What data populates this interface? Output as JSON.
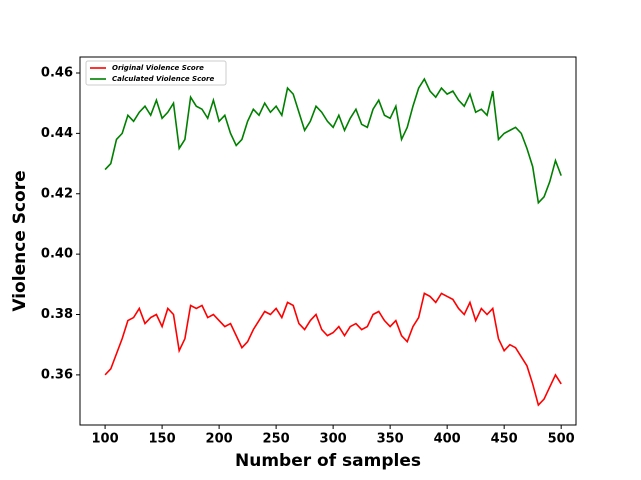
{
  "chart_data": {
    "type": "line",
    "xlabel": "Number of samples",
    "ylabel": "Violence Score",
    "x": [
      100,
      105,
      110,
      115,
      120,
      125,
      130,
      135,
      140,
      145,
      150,
      155,
      160,
      165,
      170,
      175,
      180,
      185,
      190,
      195,
      200,
      205,
      210,
      215,
      220,
      225,
      230,
      235,
      240,
      245,
      250,
      255,
      260,
      265,
      270,
      275,
      280,
      285,
      290,
      295,
      300,
      305,
      310,
      315,
      320,
      325,
      330,
      335,
      340,
      345,
      350,
      355,
      360,
      365,
      370,
      375,
      380,
      385,
      390,
      395,
      400,
      405,
      410,
      415,
      420,
      425,
      430,
      435,
      440,
      445,
      450,
      455,
      460,
      465,
      470,
      475,
      480,
      485,
      490,
      495,
      500
    ],
    "series": [
      {
        "name": "Original Violence Score",
        "color": "#ff0000",
        "values": [
          0.36,
          0.362,
          0.367,
          0.372,
          0.378,
          0.379,
          0.382,
          0.377,
          0.379,
          0.38,
          0.376,
          0.382,
          0.38,
          0.368,
          0.372,
          0.383,
          0.382,
          0.383,
          0.379,
          0.38,
          0.378,
          0.376,
          0.377,
          0.373,
          0.369,
          0.371,
          0.375,
          0.378,
          0.381,
          0.38,
          0.382,
          0.379,
          0.384,
          0.383,
          0.377,
          0.375,
          0.378,
          0.38,
          0.375,
          0.373,
          0.374,
          0.376,
          0.373,
          0.376,
          0.377,
          0.375,
          0.376,
          0.38,
          0.381,
          0.378,
          0.376,
          0.378,
          0.373,
          0.371,
          0.376,
          0.379,
          0.387,
          0.386,
          0.384,
          0.387,
          0.386,
          0.385,
          0.382,
          0.38,
          0.384,
          0.378,
          0.382,
          0.38,
          0.382,
          0.372,
          0.368,
          0.37,
          0.369,
          0.366,
          0.363,
          0.357,
          0.35,
          0.352,
          0.356,
          0.36,
          0.357
        ]
      },
      {
        "name": "Calculated Violence Score",
        "color": "#008000",
        "values": [
          0.428,
          0.43,
          0.438,
          0.44,
          0.446,
          0.444,
          0.447,
          0.449,
          0.446,
          0.451,
          0.445,
          0.447,
          0.45,
          0.435,
          0.438,
          0.452,
          0.449,
          0.448,
          0.445,
          0.451,
          0.444,
          0.446,
          0.44,
          0.436,
          0.438,
          0.444,
          0.448,
          0.446,
          0.45,
          0.447,
          0.449,
          0.446,
          0.455,
          0.453,
          0.447,
          0.441,
          0.444,
          0.449,
          0.447,
          0.444,
          0.442,
          0.446,
          0.441,
          0.445,
          0.448,
          0.443,
          0.442,
          0.448,
          0.451,
          0.446,
          0.445,
          0.449,
          0.438,
          0.442,
          0.449,
          0.455,
          0.458,
          0.454,
          0.452,
          0.455,
          0.453,
          0.454,
          0.451,
          0.449,
          0.453,
          0.447,
          0.448,
          0.446,
          0.454,
          0.438,
          0.44,
          0.441,
          0.442,
          0.44,
          0.435,
          0.429,
          0.417,
          0.419,
          0.424,
          0.431,
          0.426
        ]
      }
    ],
    "xlim": [
      78,
      513
    ],
    "ylim": [
      0.3434,
      0.4653
    ],
    "xticks": [
      100,
      150,
      200,
      250,
      300,
      350,
      400,
      450,
      500
    ],
    "yticks": [
      {
        "value": 0.36,
        "label": "0.36"
      },
      {
        "value": 0.38,
        "label": "0.38"
      },
      {
        "value": 0.4,
        "label": "0.40"
      },
      {
        "value": 0.42,
        "label": "0.42"
      },
      {
        "value": 0.44,
        "label": "0.44"
      },
      {
        "value": 0.46,
        "label": "0.46"
      }
    ],
    "legend": "upper left",
    "grid": false
  }
}
